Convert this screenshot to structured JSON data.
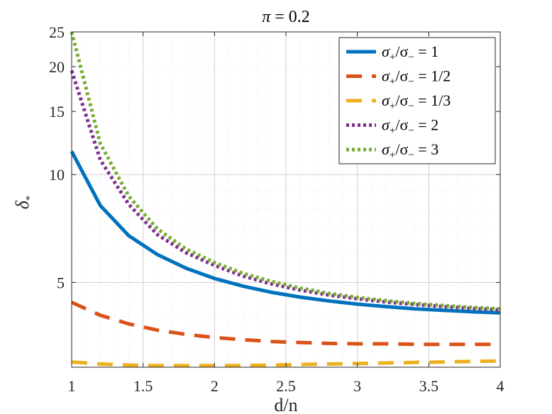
{
  "chart_data": {
    "type": "line",
    "title": {
      "main": "π",
      "rest": " = 0.2"
    },
    "xlabel": "d/n",
    "ylabel": {
      "main": "δ",
      "sub": "*"
    },
    "xlim": [
      1,
      4
    ],
    "ylim": [
      2.9,
      25
    ],
    "yscale": "log",
    "grid": "on",
    "legend_position": "top-right",
    "x_ticks": [
      {
        "value": 1,
        "label": "1"
      },
      {
        "value": 1.5,
        "label": "1.5"
      },
      {
        "value": 2,
        "label": "2"
      },
      {
        "value": 2.5,
        "label": "2.5"
      },
      {
        "value": 3,
        "label": "3"
      },
      {
        "value": 3.5,
        "label": "3.5"
      },
      {
        "value": 4,
        "label": "4"
      }
    ],
    "y_ticks": [
      {
        "value": 5,
        "label": "5"
      },
      {
        "value": 10,
        "label": "10"
      },
      {
        "value": 15,
        "label": "15"
      },
      {
        "value": 20,
        "label": "20"
      },
      {
        "value": 25,
        "label": "25"
      }
    ],
    "x": [
      1,
      1.2,
      1.4,
      1.6,
      1.8,
      2,
      2.2,
      2.4,
      2.6,
      2.8,
      3,
      3.2,
      3.4,
      3.6,
      3.8,
      4
    ],
    "series": [
      {
        "name": {
          "s1": "σ",
          "sub1": "+",
          "mid": "/σ",
          "sub2": "−",
          "rest": " = 1"
        },
        "color": "#0072BD",
        "dash": "solid",
        "values": [
          11.6,
          8.2,
          6.75,
          5.98,
          5.48,
          5.13,
          4.88,
          4.69,
          4.55,
          4.44,
          4.35,
          4.28,
          4.22,
          4.18,
          4.14,
          4.11
        ]
      },
      {
        "name": {
          "s1": "σ",
          "sub1": "+",
          "mid": "/σ",
          "sub2": "−",
          "rest": " = 1/2"
        },
        "color": "#D95319",
        "dash": "dashed",
        "values": [
          4.4,
          4.05,
          3.83,
          3.68,
          3.58,
          3.51,
          3.46,
          3.42,
          3.4,
          3.38,
          3.37,
          3.37,
          3.36,
          3.36,
          3.36,
          3.36
        ]
      },
      {
        "name": {
          "s1": "σ",
          "sub1": "+",
          "mid": "/σ",
          "sub2": "−",
          "rest": " = 1/3"
        },
        "color": "#EDB120",
        "dash": "dashed",
        "values": [
          3.0,
          2.96,
          2.94,
          2.93,
          2.93,
          2.93,
          2.93,
          2.94,
          2.95,
          2.96,
          2.97,
          2.98,
          2.99,
          3.0,
          3.01,
          3.02
        ]
      },
      {
        "name": {
          "s1": "σ",
          "sub1": "+",
          "mid": "/σ",
          "sub2": "−",
          "rest": " = 2"
        },
        "color": "#7E2F8E",
        "dash": "dotted",
        "values": [
          19.5,
          11.0,
          8.25,
          6.8,
          6.05,
          5.58,
          5.21,
          4.95,
          4.76,
          4.61,
          4.5,
          4.41,
          4.34,
          4.28,
          4.23,
          4.19
        ]
      },
      {
        "name": {
          "s1": "σ",
          "sub1": "+",
          "mid": "/σ",
          "sub2": "−",
          "rest": " = 3"
        },
        "color": "#77AC30",
        "dash": "dotted",
        "values": [
          25.0,
          12.2,
          8.7,
          7.05,
          6.2,
          5.68,
          5.3,
          5.03,
          4.82,
          4.66,
          4.54,
          4.45,
          4.37,
          4.31,
          4.26,
          4.22
        ]
      }
    ]
  }
}
